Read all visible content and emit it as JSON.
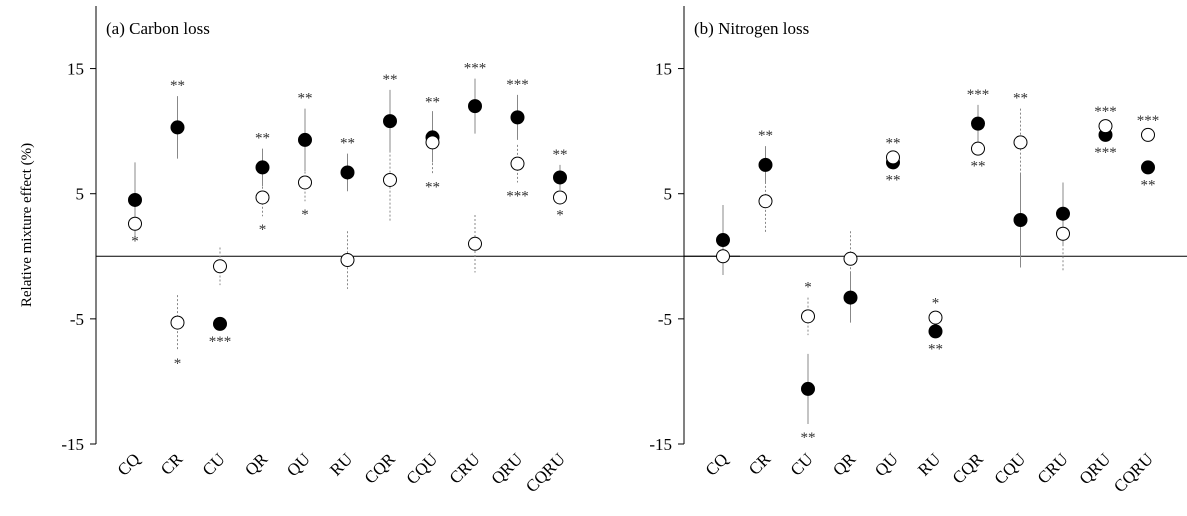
{
  "chart_data": [
    {
      "type": "scatter",
      "title": "(a) Carbon loss",
      "ylabel": "Relative mixture effect (%)",
      "ylim": [
        -15,
        20
      ],
      "yticks": [
        -15,
        -5,
        5,
        15
      ],
      "categories": [
        "CQ",
        "CR",
        "CU",
        "QR",
        "QU",
        "RU",
        "CQR",
        "CQU",
        "CRU",
        "QRU",
        "CQRU"
      ],
      "series": [
        {
          "marker": "filled",
          "values": [
            4.5,
            10.3,
            -5.4,
            7.1,
            9.3,
            6.7,
            10.8,
            9.5,
            12.0,
            11.1,
            6.3
          ],
          "err": [
            3.0,
            2.5,
            0,
            1.5,
            2.5,
            1.5,
            2.5,
            2.0,
            2.2,
            1.8,
            1.0
          ],
          "sig": [
            "",
            "**",
            "***",
            "**",
            "**",
            "**",
            "**",
            "**",
            "***",
            "***",
            "**"
          ]
        },
        {
          "marker": "open",
          "values": [
            2.6,
            -5.3,
            -0.8,
            4.7,
            5.9,
            -0.3,
            6.1,
            9.1,
            1.0,
            7.4,
            4.7
          ],
          "err": [
            0,
            2.2,
            1.5,
            1.5,
            1.5,
            2.3,
            3.3,
            2.5,
            2.3,
            1.5,
            0
          ],
          "sig": [
            "*",
            "*",
            "",
            "*",
            "*",
            "",
            "",
            "**",
            "",
            "***",
            "*"
          ]
        }
      ]
    },
    {
      "type": "scatter",
      "title": "(b) Nitrogen loss",
      "ylabel": "",
      "ylim": [
        -15,
        20
      ],
      "yticks": [
        -15,
        -5,
        5,
        15
      ],
      "categories": [
        "CQ",
        "CR",
        "CU",
        "QR",
        "QU",
        "RU",
        "CQR",
        "CQU",
        "CRU",
        "QRU",
        "CQRU"
      ],
      "series": [
        {
          "marker": "filled",
          "values": [
            1.3,
            7.3,
            -10.6,
            -3.3,
            7.5,
            -6.0,
            10.6,
            2.9,
            3.4,
            9.7,
            7.1
          ],
          "err": [
            2.8,
            1.5,
            2.8,
            2.0,
            0,
            0,
            1.5,
            3.8,
            2.5,
            0,
            0
          ],
          "sig": [
            "",
            "**",
            "**",
            "",
            "**",
            "**",
            "***",
            "",
            "",
            "***",
            "**"
          ]
        },
        {
          "marker": "open",
          "values": [
            0.0,
            4.4,
            -4.8,
            -0.2,
            7.9,
            -4.9,
            8.6,
            9.1,
            1.8,
            10.4,
            9.7
          ],
          "err": [
            1.4,
            2.5,
            1.5,
            2.2,
            0,
            0,
            0,
            2.7,
            3.0,
            0,
            0
          ],
          "sig": [
            "",
            "",
            "*",
            "",
            "**",
            "*",
            "**",
            "**",
            "",
            "***",
            "***"
          ]
        }
      ]
    }
  ]
}
